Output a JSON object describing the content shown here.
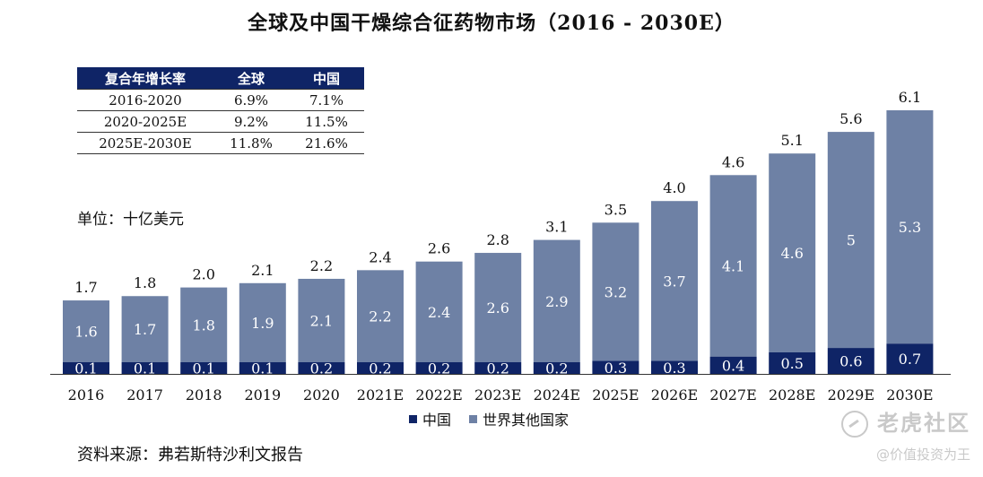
{
  "title": "全球及中国干燥综合征药物市场（2016 - 2030E）",
  "unit_label": "单位：十亿美元",
  "source": "资料来源：弗若斯特沙利文报告",
  "cagr_table": {
    "headers": [
      "复合年增长率",
      "全球",
      "中国"
    ],
    "rows": [
      [
        "2016-2020",
        "6.9%",
        "7.1%"
      ],
      [
        "2020-2025E",
        "9.2%",
        "11.5%"
      ],
      [
        "2025E-2030E",
        "11.8%",
        "21.6%"
      ]
    ]
  },
  "legend": {
    "china": "中国",
    "rest": "世界其他国家"
  },
  "watermark": {
    "main": "老虎社区",
    "sub": "@价值投资为王"
  },
  "colors": {
    "china": "#0f2466",
    "rest": "#6e81a5",
    "header": "#0f2466"
  },
  "chart_data": {
    "type": "bar",
    "stacked": true,
    "categories": [
      "2016",
      "2017",
      "2018",
      "2019",
      "2020",
      "2021E",
      "2022E",
      "2023E",
      "2024E",
      "2025E",
      "2026E",
      "2027E",
      "2028E",
      "2029E",
      "2030E"
    ],
    "series": [
      {
        "name": "中国",
        "values": [
          0.1,
          0.1,
          0.1,
          0.1,
          0.2,
          0.2,
          0.2,
          0.2,
          0.2,
          0.3,
          0.3,
          0.4,
          0.5,
          0.6,
          0.7
        ]
      },
      {
        "name": "世界其他国家",
        "values": [
          1.6,
          1.7,
          1.8,
          1.9,
          2.1,
          2.2,
          2.4,
          2.6,
          2.9,
          3.2,
          3.7,
          4.1,
          4.6,
          5.0,
          5.3
        ]
      }
    ],
    "totals": [
      1.7,
      1.8,
      2.0,
      2.1,
      2.2,
      2.4,
      2.6,
      2.8,
      3.1,
      3.5,
      4.0,
      4.6,
      5.1,
      5.6,
      6.1
    ],
    "ylim": [
      0,
      6.1
    ],
    "grid": false,
    "legend_position": "bottom-center"
  }
}
